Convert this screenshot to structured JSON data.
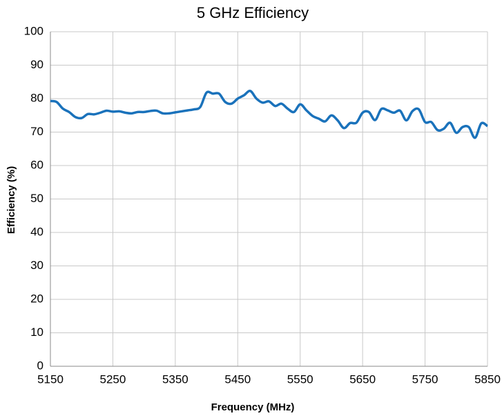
{
  "chart_data": {
    "type": "line",
    "title": "5 GHz Efficiency",
    "x_label": "Frequency (MHz)",
    "y_label": "Efficiency (%)",
    "x": [
      5150,
      5160,
      5170,
      5180,
      5190,
      5200,
      5210,
      5220,
      5230,
      5240,
      5250,
      5260,
      5270,
      5280,
      5290,
      5300,
      5310,
      5320,
      5330,
      5340,
      5350,
      5360,
      5370,
      5380,
      5390,
      5400,
      5410,
      5420,
      5430,
      5440,
      5450,
      5460,
      5470,
      5480,
      5490,
      5500,
      5510,
      5520,
      5530,
      5540,
      5550,
      5560,
      5570,
      5580,
      5590,
      5600,
      5610,
      5620,
      5630,
      5640,
      5650,
      5660,
      5670,
      5680,
      5690,
      5700,
      5710,
      5720,
      5730,
      5740,
      5750,
      5760,
      5770,
      5780,
      5790,
      5800,
      5810,
      5820,
      5830,
      5840,
      5850
    ],
    "series": [
      {
        "name": "Efficiency",
        "color": "#1a72bb",
        "values": [
          79.3,
          79,
          77,
          76,
          74.5,
          74.2,
          75.4,
          75.3,
          75.8,
          76.4,
          76.1,
          76.2,
          75.8,
          75.6,
          76,
          76,
          76.3,
          76.4,
          75.6,
          75.6,
          75.9,
          76.2,
          76.5,
          76.8,
          77.5,
          81.8,
          81.5,
          81.5,
          79,
          78.5,
          80,
          81,
          82.3,
          80,
          78.8,
          79.2,
          77.8,
          78.5,
          77,
          76,
          78.3,
          76.5,
          74.8,
          74,
          73.2,
          75,
          73.5,
          71.2,
          72.7,
          72.8,
          75.8,
          76,
          73.6,
          76.9,
          76.5,
          75.8,
          76.4,
          73.5,
          76.3,
          76.8,
          73,
          73,
          70.6,
          71,
          72.8,
          69.8,
          71.5,
          71.5,
          68.3,
          72.6,
          71.8
        ]
      }
    ],
    "xlim": [
      5150,
      5850
    ],
    "xticks": [
      5150,
      5250,
      5350,
      5450,
      5550,
      5650,
      5750,
      5850
    ],
    "ylim": [
      0,
      100
    ],
    "yticks": [
      0,
      10,
      20,
      30,
      40,
      50,
      60,
      70,
      80,
      90,
      100
    ],
    "grid": true
  }
}
